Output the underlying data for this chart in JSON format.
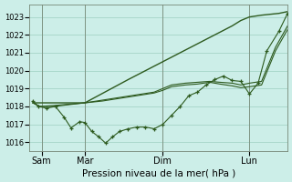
{
  "title": "Pression niveau de la mer( hPa )",
  "bg_color": "#cceee8",
  "grid_color": "#aad8cc",
  "line_color": "#2d5a1e",
  "ylim": [
    1015.5,
    1023.7
  ],
  "yticks": [
    1016,
    1017,
    1018,
    1019,
    1020,
    1021,
    1022,
    1023
  ],
  "xlim": [
    -0.2,
    14.7
  ],
  "xtick_positions": [
    0.5,
    3.0,
    7.5,
    12.5
  ],
  "xtick_labels": [
    "Sam",
    "Mar",
    "Dim",
    "Lun"
  ],
  "vline_positions": [
    0.5,
    3.0,
    7.5,
    12.5
  ],
  "series1_x": [
    0.0,
    3.0,
    5.5,
    7.5,
    8.5,
    9.5,
    10.5,
    11.5,
    12.0,
    12.5,
    13.2,
    14.2,
    14.7
  ],
  "series1_y": [
    1018.2,
    1018.2,
    1019.5,
    1020.5,
    1021.0,
    1021.5,
    1022.0,
    1022.5,
    1022.8,
    1023.0,
    1023.1,
    1023.2,
    1023.3
  ],
  "series2_x": [
    0.0,
    0.4,
    1.2,
    3.0,
    4.0,
    5.0,
    6.0,
    7.0,
    7.5,
    8.0,
    8.8,
    9.5,
    10.2,
    10.8,
    11.5,
    12.0,
    12.5,
    13.2,
    14.0,
    14.7
  ],
  "series2_y": [
    1018.2,
    1018.0,
    1018.0,
    1018.2,
    1018.35,
    1018.5,
    1018.65,
    1018.8,
    1019.0,
    1019.2,
    1019.3,
    1019.35,
    1019.4,
    1019.35,
    1019.3,
    1019.2,
    1019.3,
    1019.4,
    1021.3,
    1022.5
  ],
  "series3_x": [
    0.0,
    0.4,
    1.2,
    3.0,
    4.0,
    5.0,
    6.0,
    7.0,
    7.5,
    8.0,
    8.8,
    9.5,
    10.2,
    10.8,
    11.5,
    12.0,
    12.5,
    13.2,
    14.0,
    14.7
  ],
  "series3_y": [
    1018.2,
    1018.0,
    1018.05,
    1018.2,
    1018.3,
    1018.45,
    1018.6,
    1018.75,
    1018.9,
    1019.1,
    1019.2,
    1019.25,
    1019.35,
    1019.25,
    1019.15,
    1019.05,
    1019.1,
    1019.2,
    1021.1,
    1022.3
  ],
  "series4_x": [
    0.0,
    0.3,
    0.8,
    1.3,
    1.8,
    2.2,
    2.7,
    3.0,
    3.4,
    3.8,
    4.2,
    4.6,
    5.0,
    5.5,
    6.0,
    6.5,
    7.0,
    7.5,
    8.0,
    8.5,
    9.0,
    9.5,
    10.0,
    10.5,
    11.0,
    11.5,
    12.0,
    12.5,
    13.0,
    13.5,
    14.2,
    14.7
  ],
  "series4_y": [
    1018.3,
    1018.0,
    1017.9,
    1018.0,
    1017.4,
    1016.8,
    1017.15,
    1017.1,
    1016.6,
    1016.3,
    1015.95,
    1016.3,
    1016.6,
    1016.75,
    1016.85,
    1016.85,
    1016.75,
    1017.0,
    1017.5,
    1018.0,
    1018.6,
    1018.8,
    1019.2,
    1019.5,
    1019.7,
    1019.45,
    1019.4,
    1018.7,
    1019.3,
    1021.1,
    1022.2,
    1023.2
  ]
}
